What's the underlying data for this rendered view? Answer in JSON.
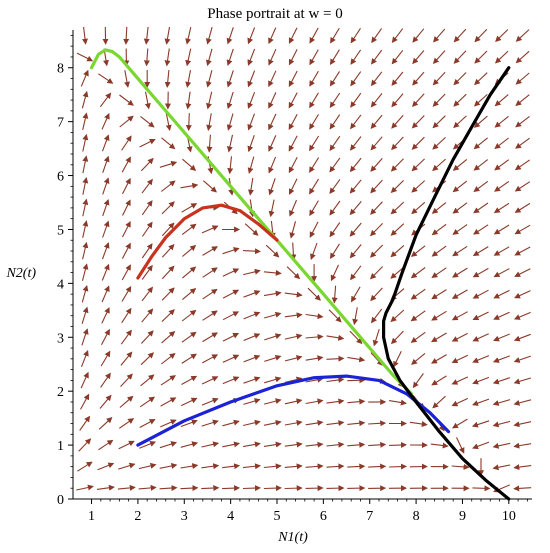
{
  "chart_data": {
    "type": "line",
    "title": "Phase portrait at w = 0",
    "xlabel": "N1(t)",
    "ylabel": "N2(t)",
    "xlim": [
      0.6,
      10.5
    ],
    "ylim": [
      0,
      8.7
    ],
    "xticks": [
      1,
      2,
      3,
      4,
      5,
      6,
      7,
      8,
      9,
      10
    ],
    "yticks": [
      0,
      1,
      2,
      3,
      4,
      5,
      6,
      7,
      8
    ],
    "grid": false,
    "legend": "none",
    "direction_field": {
      "color": "#8b3a2a",
      "x_samples": [
        0.85,
        1.3,
        1.75,
        2.2,
        2.65,
        3.1,
        3.55,
        4.0,
        4.45,
        4.9,
        5.35,
        5.8,
        6.25,
        6.7,
        7.15,
        7.6,
        8.05,
        8.5,
        8.95,
        9.4,
        9.85,
        10.3
      ],
      "y_samples": [
        0.2,
        0.6,
        1.0,
        1.4,
        1.8,
        2.2,
        2.6,
        3.0,
        3.4,
        3.8,
        4.2,
        4.6,
        5.0,
        5.4,
        5.8,
        6.2,
        6.6,
        7.0,
        7.4,
        7.8,
        8.2,
        8.6
      ]
    },
    "series": [
      {
        "color": "#7ad631",
        "x": [
          1.0,
          1.15,
          1.3,
          1.45,
          1.6,
          1.8,
          2.1,
          2.5,
          3.0,
          3.5,
          4.0,
          4.5,
          5.0,
          5.5,
          6.0,
          6.5,
          7.0,
          7.5,
          7.9
        ],
        "y": [
          8.0,
          8.25,
          8.33,
          8.3,
          8.2,
          8.0,
          7.7,
          7.3,
          6.8,
          6.3,
          5.8,
          5.3,
          4.8,
          4.3,
          3.8,
          3.3,
          2.8,
          2.3,
          1.95
        ]
      },
      {
        "color": "#c8321e",
        "x": [
          2.0,
          2.3,
          2.6,
          3.0,
          3.4,
          3.8,
          4.2,
          4.6,
          5.0
        ],
        "y": [
          4.1,
          4.5,
          4.85,
          5.2,
          5.4,
          5.45,
          5.35,
          5.1,
          4.8
        ]
      },
      {
        "color": "#1c22d6",
        "x": [
          2.0,
          3.0,
          4.0,
          5.0,
          5.8,
          6.5,
          7.2,
          7.8,
          8.3,
          8.7
        ],
        "y": [
          1.0,
          1.45,
          1.8,
          2.1,
          2.25,
          2.28,
          2.2,
          1.95,
          1.6,
          1.25
        ]
      },
      {
        "color": "#000000",
        "x": [
          10.0,
          9.6,
          9.2,
          8.8,
          8.4,
          8.0,
          7.7,
          7.5,
          7.35,
          7.3,
          7.3,
          7.4,
          7.65,
          8.0,
          8.5,
          9.0,
          9.5,
          10.0
        ],
        "y": [
          8.0,
          7.5,
          6.9,
          6.3,
          5.6,
          4.9,
          4.2,
          3.7,
          3.45,
          3.3,
          3.0,
          2.6,
          2.2,
          1.8,
          1.25,
          0.75,
          0.35,
          0.0
        ]
      }
    ]
  }
}
